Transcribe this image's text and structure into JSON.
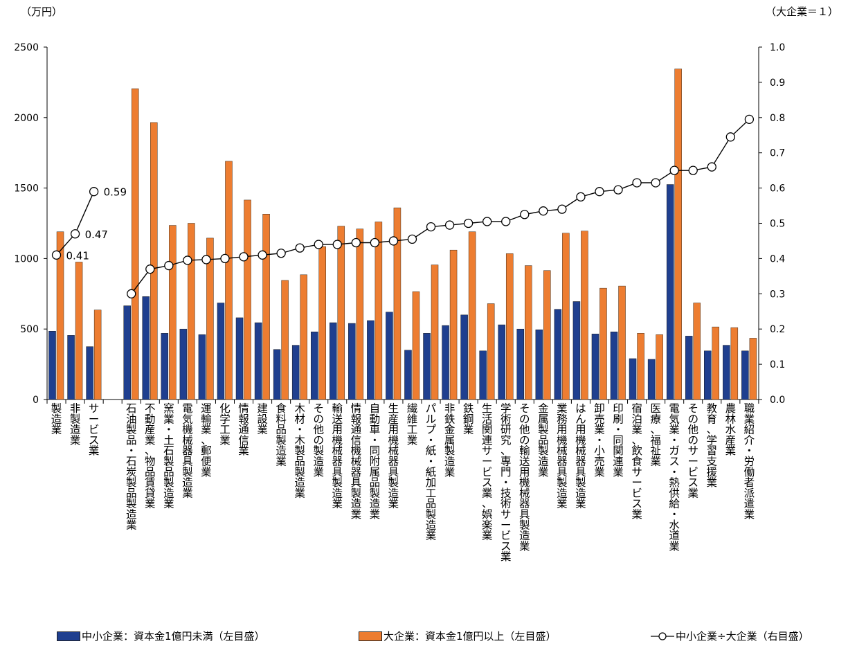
{
  "chart_data": {
    "type": "bar",
    "left_unit_label": "（万円）",
    "right_unit_label": "（大企業＝１）",
    "ylim_left": [
      0,
      2500
    ],
    "yticks_left": [
      0,
      500,
      1000,
      1500,
      2000,
      2500
    ],
    "ylim_right": [
      0,
      1.0
    ],
    "yticks_right": [
      "0.0",
      "0.1",
      "0.2",
      "0.3",
      "0.4",
      "0.5",
      "0.6",
      "0.7",
      "0.8",
      "0.9",
      "1.0"
    ],
    "grid": false,
    "legend_position": "bottom",
    "colors": {
      "sme": "#1f3f8f",
      "large": "#ed7d31",
      "ratio": "#000000"
    },
    "groups": [
      {
        "categories": [
          "製造業",
          "非製造業",
          "サービス業"
        ],
        "sme": [
          485,
          455,
          375
        ],
        "large": [
          1190,
          975,
          635
        ],
        "ratio": [
          0.41,
          0.47,
          0.59
        ],
        "ratio_labels": [
          "0.41",
          "0.47",
          "0.59"
        ]
      },
      {
        "categories": [
          "石油製品・石炭製品製造業",
          "不動産業、物品賃貸業",
          "窯業・土石製品製造業",
          "電気機械器具製造業",
          "運輸業、郵便業",
          "化学工業",
          "情報通信業",
          "建設業",
          "食料品製造業",
          "木材・木製品製造業",
          "その他の製造業",
          "輸送用機械器具製造業",
          "情報通信機械器具製造業",
          "自動車・同附属品製造業",
          "生産用機械器具製造業",
          "繊維工業",
          "パルプ・紙・紙加工品製造業",
          "非鉄金属製造業",
          "鉄鋼業",
          "生活関連サービス業、娯楽業",
          "学術研究、専門・技術サービス業",
          "その他の輸送用機械器具製造業",
          "金属製品製造業",
          "業務用機械器具製造業",
          "はん用機械器具製造業",
          "卸売業・小売業",
          "印刷・同関連業",
          "宿泊業、飲食サービス業",
          "医療、福祉業",
          "電気業・ガス・熱供給・水道業",
          "その他のサービス業",
          "教育、学習支援業",
          "農林水産業",
          "職業紹介・労働者派遣業"
        ],
        "sme": [
          665,
          730,
          470,
          500,
          460,
          685,
          580,
          545,
          355,
          385,
          480,
          545,
          540,
          560,
          620,
          350,
          470,
          525,
          600,
          345,
          530,
          500,
          495,
          640,
          695,
          465,
          480,
          290,
          285,
          1525,
          450,
          345,
          385,
          345
        ],
        "large": [
          2205,
          1965,
          1235,
          1250,
          1145,
          1690,
          1415,
          1315,
          845,
          885,
          1085,
          1230,
          1210,
          1260,
          1360,
          765,
          955,
          1060,
          1190,
          680,
          1035,
          950,
          915,
          1180,
          1195,
          790,
          805,
          470,
          460,
          2345,
          685,
          515,
          510,
          435
        ],
        "ratio": [
          0.3,
          0.37,
          0.38,
          0.395,
          0.397,
          0.4,
          0.405,
          0.41,
          0.415,
          0.43,
          0.44,
          0.44,
          0.445,
          0.445,
          0.45,
          0.455,
          0.49,
          0.495,
          0.5,
          0.505,
          0.505,
          0.525,
          0.535,
          0.54,
          0.575,
          0.59,
          0.595,
          0.615,
          0.615,
          0.65,
          0.65,
          0.66,
          0.745,
          0.795
        ]
      }
    ],
    "legend": [
      "中小企業：資本金1億円未満（左目盛）",
      "大企業：資本金1億円以上（左目盛）",
      "中小企業÷大企業（右目盛）"
    ]
  }
}
